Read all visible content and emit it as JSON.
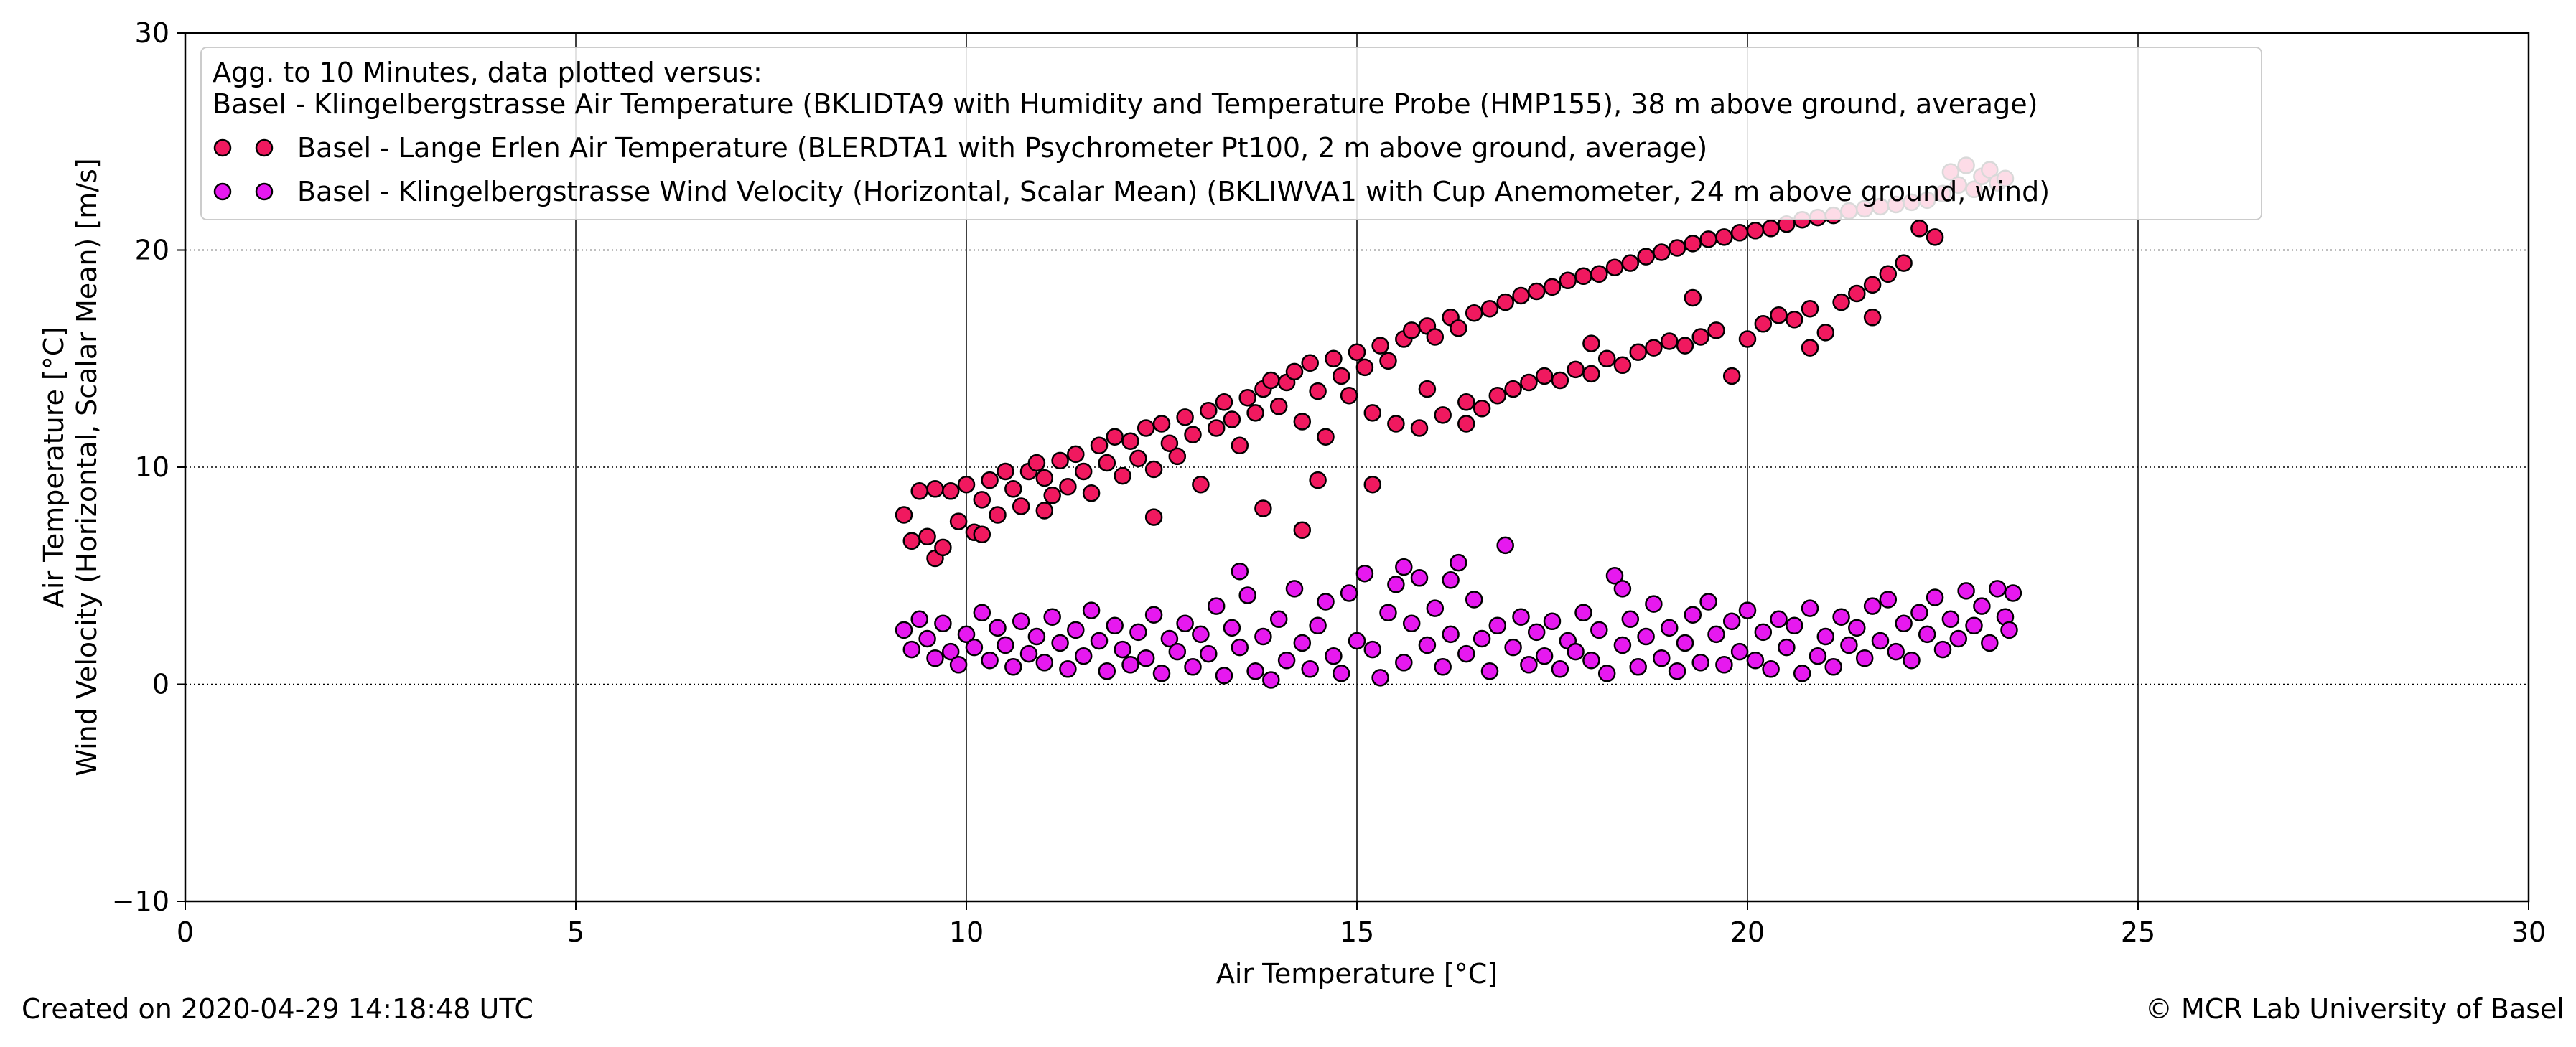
{
  "chart_data": {
    "type": "scatter",
    "xlabel": "Air Temperature [°C]",
    "ylabel_lines": [
      "Air Temperature [°C]",
      "Wind Velocity (Horizontal, Scalar Mean) [m/s]"
    ],
    "xlim": [
      0,
      30
    ],
    "ylim": [
      -10,
      30
    ],
    "x_ticks": [
      0,
      5,
      10,
      15,
      20,
      25,
      30
    ],
    "y_ticks": [
      -10,
      0,
      10,
      20,
      30
    ],
    "x_tick_labels": [
      "0",
      "5",
      "10",
      "15",
      "20",
      "25",
      "30"
    ],
    "y_tick_labels": [
      "−10",
      "0",
      "10",
      "20",
      "30"
    ],
    "grid": {
      "x": "solid",
      "y": "dotted"
    },
    "legend": {
      "placement": "top-left",
      "header_lines": [
        "Agg. to 10 Minutes, data plotted versus:",
        "Basel - Klingelbergstrasse  Air Temperature (BKLIDTA9 with Humidity and Temperature Probe (HMP155), 38  m above ground, average)"
      ]
    },
    "series": [
      {
        "name": "Basel - Lange Erlen  Air Temperature (BLERDTA1 with Psychrometer Pt100, 2  m above ground, average)",
        "color": "#f0195f",
        "edge_color": "#000000",
        "points": [
          [
            9.2,
            7.8
          ],
          [
            9.3,
            6.6
          ],
          [
            9.4,
            8.9
          ],
          [
            9.5,
            6.8
          ],
          [
            9.6,
            5.8
          ],
          [
            9.7,
            6.3
          ],
          [
            9.8,
            8.9
          ],
          [
            9.9,
            7.5
          ],
          [
            10.0,
            9.2
          ],
          [
            10.1,
            7.0
          ],
          [
            10.2,
            8.5
          ],
          [
            10.3,
            9.4
          ],
          [
            10.4,
            7.8
          ],
          [
            10.5,
            9.8
          ],
          [
            10.6,
            9.0
          ],
          [
            10.7,
            8.2
          ],
          [
            10.8,
            9.8
          ],
          [
            10.9,
            10.2
          ],
          [
            11.0,
            9.5
          ],
          [
            11.1,
            8.7
          ],
          [
            11.2,
            10.3
          ],
          [
            11.3,
            9.1
          ],
          [
            11.4,
            10.6
          ],
          [
            11.5,
            9.8
          ],
          [
            11.6,
            8.8
          ],
          [
            11.7,
            11.0
          ],
          [
            11.8,
            10.2
          ],
          [
            11.9,
            11.4
          ],
          [
            12.0,
            9.6
          ],
          [
            12.1,
            11.2
          ],
          [
            12.2,
            10.4
          ],
          [
            12.3,
            11.8
          ],
          [
            12.4,
            9.9
          ],
          [
            12.5,
            12.0
          ],
          [
            12.6,
            11.1
          ],
          [
            12.7,
            10.5
          ],
          [
            12.8,
            12.3
          ],
          [
            12.9,
            11.5
          ],
          [
            13.0,
            9.2
          ],
          [
            13.1,
            12.6
          ],
          [
            13.2,
            11.8
          ],
          [
            13.3,
            13.0
          ],
          [
            13.4,
            12.2
          ],
          [
            13.5,
            11.0
          ],
          [
            13.6,
            13.2
          ],
          [
            13.7,
            12.5
          ],
          [
            13.8,
            13.6
          ],
          [
            13.9,
            14.0
          ],
          [
            14.0,
            12.8
          ],
          [
            14.1,
            13.9
          ],
          [
            14.2,
            14.4
          ],
          [
            14.3,
            12.1
          ],
          [
            14.4,
            14.8
          ],
          [
            14.5,
            13.5
          ],
          [
            14.6,
            11.4
          ],
          [
            14.7,
            15.0
          ],
          [
            14.8,
            14.2
          ],
          [
            14.9,
            13.3
          ],
          [
            15.0,
            15.3
          ],
          [
            15.1,
            14.6
          ],
          [
            15.2,
            12.5
          ],
          [
            15.3,
            15.6
          ],
          [
            15.4,
            14.9
          ],
          [
            15.5,
            12.0
          ],
          [
            15.6,
            15.9
          ],
          [
            15.7,
            16.3
          ],
          [
            15.8,
            11.8
          ],
          [
            15.9,
            16.5
          ],
          [
            16.0,
            16.0
          ],
          [
            16.1,
            12.4
          ],
          [
            16.2,
            16.9
          ],
          [
            16.3,
            16.4
          ],
          [
            16.4,
            13.0
          ],
          [
            16.5,
            17.1
          ],
          [
            16.6,
            12.7
          ],
          [
            16.7,
            17.3
          ],
          [
            16.8,
            13.3
          ],
          [
            16.9,
            17.6
          ],
          [
            17.0,
            13.6
          ],
          [
            17.1,
            17.9
          ],
          [
            17.2,
            13.9
          ],
          [
            17.3,
            18.1
          ],
          [
            17.4,
            14.2
          ],
          [
            17.5,
            18.3
          ],
          [
            17.6,
            14.0
          ],
          [
            17.7,
            18.6
          ],
          [
            17.8,
            14.5
          ],
          [
            17.9,
            18.8
          ],
          [
            18.0,
            14.3
          ],
          [
            18.1,
            18.9
          ],
          [
            18.2,
            15.0
          ],
          [
            18.3,
            19.2
          ],
          [
            18.4,
            14.7
          ],
          [
            18.5,
            19.4
          ],
          [
            18.6,
            15.3
          ],
          [
            18.7,
            19.7
          ],
          [
            18.8,
            15.5
          ],
          [
            18.9,
            19.9
          ],
          [
            19.0,
            15.8
          ],
          [
            19.1,
            20.1
          ],
          [
            19.2,
            15.6
          ],
          [
            19.3,
            20.3
          ],
          [
            19.4,
            16.0
          ],
          [
            19.5,
            20.5
          ],
          [
            19.6,
            16.3
          ],
          [
            19.7,
            20.6
          ],
          [
            19.8,
            14.2
          ],
          [
            19.9,
            20.8
          ],
          [
            20.0,
            15.9
          ],
          [
            20.1,
            20.9
          ],
          [
            20.2,
            16.6
          ],
          [
            20.3,
            21.0
          ],
          [
            20.4,
            17.0
          ],
          [
            20.5,
            21.2
          ],
          [
            20.6,
            16.8
          ],
          [
            20.7,
            21.4
          ],
          [
            20.8,
            17.3
          ],
          [
            20.9,
            21.5
          ],
          [
            21.0,
            16.2
          ],
          [
            21.1,
            21.6
          ],
          [
            21.2,
            17.6
          ],
          [
            21.3,
            21.8
          ],
          [
            21.4,
            18.0
          ],
          [
            21.5,
            21.9
          ],
          [
            21.6,
            18.4
          ],
          [
            21.7,
            22.0
          ],
          [
            21.8,
            18.9
          ],
          [
            21.9,
            22.1
          ],
          [
            22.0,
            19.4
          ],
          [
            22.1,
            22.2
          ],
          [
            22.2,
            21.0
          ],
          [
            22.3,
            22.3
          ],
          [
            22.4,
            20.6
          ],
          [
            22.5,
            22.6
          ],
          [
            22.6,
            23.6
          ],
          [
            22.7,
            23.0
          ],
          [
            22.8,
            23.9
          ],
          [
            22.9,
            22.8
          ],
          [
            23.0,
            23.4
          ],
          [
            23.1,
            23.7
          ],
          [
            23.2,
            23.1
          ],
          [
            23.3,
            23.3
          ],
          [
            9.6,
            9.0
          ],
          [
            10.2,
            6.9
          ],
          [
            11.0,
            8.0
          ],
          [
            12.4,
            7.7
          ],
          [
            13.8,
            8.1
          ],
          [
            14.3,
            7.1
          ],
          [
            14.5,
            9.4
          ],
          [
            15.2,
            9.2
          ],
          [
            15.9,
            13.6
          ],
          [
            16.4,
            12.0
          ],
          [
            18.0,
            15.7
          ],
          [
            19.3,
            17.8
          ],
          [
            20.8,
            15.5
          ],
          [
            21.6,
            16.9
          ]
        ]
      },
      {
        "name": "Basel - Klingelbergstrasse  Wind Velocity (Horizontal, Scalar Mean) (BKLIWVA1 with Cup Anemometer, 24  m above ground, wind)",
        "color": "#e619ef",
        "edge_color": "#000000",
        "points": [
          [
            9.2,
            2.5
          ],
          [
            9.3,
            1.6
          ],
          [
            9.4,
            3.0
          ],
          [
            9.5,
            2.1
          ],
          [
            9.6,
            1.2
          ],
          [
            9.7,
            2.8
          ],
          [
            9.8,
            1.5
          ],
          [
            9.9,
            0.9
          ],
          [
            10.0,
            2.3
          ],
          [
            10.1,
            1.7
          ],
          [
            10.2,
            3.3
          ],
          [
            10.3,
            1.1
          ],
          [
            10.4,
            2.6
          ],
          [
            10.5,
            1.8
          ],
          [
            10.6,
            0.8
          ],
          [
            10.7,
            2.9
          ],
          [
            10.8,
            1.4
          ],
          [
            10.9,
            2.2
          ],
          [
            11.0,
            1.0
          ],
          [
            11.1,
            3.1
          ],
          [
            11.2,
            1.9
          ],
          [
            11.3,
            0.7
          ],
          [
            11.4,
            2.5
          ],
          [
            11.5,
            1.3
          ],
          [
            11.6,
            3.4
          ],
          [
            11.7,
            2.0
          ],
          [
            11.8,
            0.6
          ],
          [
            11.9,
            2.7
          ],
          [
            12.0,
            1.6
          ],
          [
            12.1,
            0.9
          ],
          [
            12.2,
            2.4
          ],
          [
            12.3,
            1.2
          ],
          [
            12.4,
            3.2
          ],
          [
            12.5,
            0.5
          ],
          [
            12.6,
            2.1
          ],
          [
            12.7,
            1.5
          ],
          [
            12.8,
            2.8
          ],
          [
            12.9,
            0.8
          ],
          [
            13.0,
            2.3
          ],
          [
            13.1,
            1.4
          ],
          [
            13.2,
            3.6
          ],
          [
            13.3,
            0.4
          ],
          [
            13.4,
            2.6
          ],
          [
            13.5,
            1.7
          ],
          [
            13.6,
            4.1
          ],
          [
            13.7,
            0.6
          ],
          [
            13.8,
            2.2
          ],
          [
            13.9,
            0.2
          ],
          [
            14.0,
            3.0
          ],
          [
            14.1,
            1.1
          ],
          [
            14.2,
            4.4
          ],
          [
            14.3,
            1.9
          ],
          [
            14.4,
            0.7
          ],
          [
            14.5,
            2.7
          ],
          [
            14.6,
            3.8
          ],
          [
            14.7,
            1.3
          ],
          [
            14.8,
            0.5
          ],
          [
            14.9,
            4.2
          ],
          [
            15.0,
            2.0
          ],
          [
            15.1,
            5.1
          ],
          [
            15.2,
            1.6
          ],
          [
            15.3,
            0.3
          ],
          [
            15.4,
            3.3
          ],
          [
            15.5,
            4.6
          ],
          [
            15.6,
            1.0
          ],
          [
            15.7,
            2.8
          ],
          [
            15.8,
            4.9
          ],
          [
            15.9,
            1.8
          ],
          [
            16.0,
            3.5
          ],
          [
            16.1,
            0.8
          ],
          [
            16.2,
            2.3
          ],
          [
            16.3,
            5.6
          ],
          [
            16.4,
            1.4
          ],
          [
            16.5,
            3.9
          ],
          [
            16.6,
            2.1
          ],
          [
            16.7,
            0.6
          ],
          [
            16.8,
            2.7
          ],
          [
            16.9,
            6.4
          ],
          [
            17.0,
            1.7
          ],
          [
            17.1,
            3.1
          ],
          [
            17.2,
            0.9
          ],
          [
            17.3,
            2.4
          ],
          [
            17.4,
            1.3
          ],
          [
            17.5,
            2.9
          ],
          [
            17.6,
            0.7
          ],
          [
            17.7,
            2.0
          ],
          [
            17.8,
            1.5
          ],
          [
            17.9,
            3.3
          ],
          [
            18.0,
            1.1
          ],
          [
            18.1,
            2.5
          ],
          [
            18.2,
            0.5
          ],
          [
            18.3,
            5.0
          ],
          [
            18.4,
            1.8
          ],
          [
            18.5,
            3.0
          ],
          [
            18.6,
            0.8
          ],
          [
            18.7,
            2.2
          ],
          [
            18.8,
            3.7
          ],
          [
            18.9,
            1.2
          ],
          [
            19.0,
            2.6
          ],
          [
            19.1,
            0.6
          ],
          [
            19.2,
            1.9
          ],
          [
            19.3,
            3.2
          ],
          [
            19.4,
            1.0
          ],
          [
            19.5,
            3.8
          ],
          [
            19.6,
            2.3
          ],
          [
            19.7,
            0.9
          ],
          [
            19.8,
            2.9
          ],
          [
            19.9,
            1.5
          ],
          [
            20.0,
            3.4
          ],
          [
            20.1,
            1.1
          ],
          [
            20.2,
            2.4
          ],
          [
            20.3,
            0.7
          ],
          [
            20.4,
            3.0
          ],
          [
            20.5,
            1.7
          ],
          [
            20.6,
            2.7
          ],
          [
            20.7,
            0.5
          ],
          [
            20.8,
            3.5
          ],
          [
            20.9,
            1.3
          ],
          [
            21.0,
            2.2
          ],
          [
            21.1,
            0.8
          ],
          [
            21.2,
            3.1
          ],
          [
            21.3,
            1.8
          ],
          [
            21.4,
            2.6
          ],
          [
            21.5,
            1.2
          ],
          [
            21.6,
            3.6
          ],
          [
            21.7,
            2.0
          ],
          [
            21.8,
            3.9
          ],
          [
            21.9,
            1.5
          ],
          [
            22.0,
            2.8
          ],
          [
            22.1,
            1.1
          ],
          [
            22.2,
            3.3
          ],
          [
            22.3,
            2.3
          ],
          [
            22.4,
            4.0
          ],
          [
            22.5,
            1.6
          ],
          [
            22.6,
            3.0
          ],
          [
            22.7,
            2.1
          ],
          [
            22.8,
            4.3
          ],
          [
            22.9,
            2.7
          ],
          [
            23.0,
            3.6
          ],
          [
            23.1,
            1.9
          ],
          [
            23.2,
            4.4
          ],
          [
            23.3,
            3.1
          ],
          [
            23.35,
            2.5
          ],
          [
            23.4,
            4.2
          ],
          [
            16.2,
            4.8
          ],
          [
            15.6,
            5.4
          ],
          [
            13.5,
            5.2
          ],
          [
            18.4,
            4.4
          ]
        ]
      }
    ]
  },
  "footer": {
    "created": "Created on 2020-04-29 14:18:48 UTC",
    "copyright": "© MCR Lab University of Basel"
  }
}
